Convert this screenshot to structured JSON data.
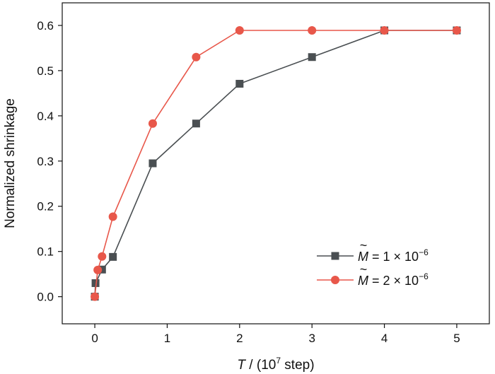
{
  "chart_data": {
    "type": "line",
    "xlabel": {
      "var": "T",
      "sep": " / (10",
      "exp": "7",
      "unit": " step)"
    },
    "ylabel": "Normalized shrinkage",
    "xlim": [
      -0.45,
      5.45
    ],
    "ylim": [
      -0.06,
      0.65
    ],
    "xticks": [
      0,
      1,
      2,
      3,
      4,
      5
    ],
    "xtick_labels": [
      "0",
      "1",
      "2",
      "3",
      "4",
      "5"
    ],
    "yticks": [
      0.0,
      0.1,
      0.2,
      0.3,
      0.4,
      0.5,
      0.6
    ],
    "ytick_labels": [
      "0.0",
      "0.1",
      "0.2",
      "0.3",
      "0.4",
      "0.5",
      "0.6"
    ],
    "grid": false,
    "legend_position": "bottom-right",
    "series": [
      {
        "name": {
          "symbol": "M",
          "mid": " = 1 × 10",
          "exp": "−6"
        },
        "color": "#4a4f52",
        "marker": "square",
        "x": [
          0,
          0.01,
          0.1,
          0.25,
          0.8,
          1.4,
          2,
          3,
          4,
          5
        ],
        "y": [
          0.0,
          0.03,
          0.06,
          0.088,
          0.295,
          0.383,
          0.471,
          0.53,
          0.589,
          0.589
        ]
      },
      {
        "name": {
          "symbol": "M",
          "mid": " = 2 × 10",
          "exp": "−6"
        },
        "color": "#e8574a",
        "marker": "circle",
        "x": [
          0,
          0.04,
          0.1,
          0.25,
          0.8,
          1.4,
          2,
          3,
          4,
          5
        ],
        "y": [
          0.0,
          0.059,
          0.089,
          0.177,
          0.383,
          0.53,
          0.589,
          0.589,
          0.589,
          0.589
        ]
      }
    ]
  }
}
